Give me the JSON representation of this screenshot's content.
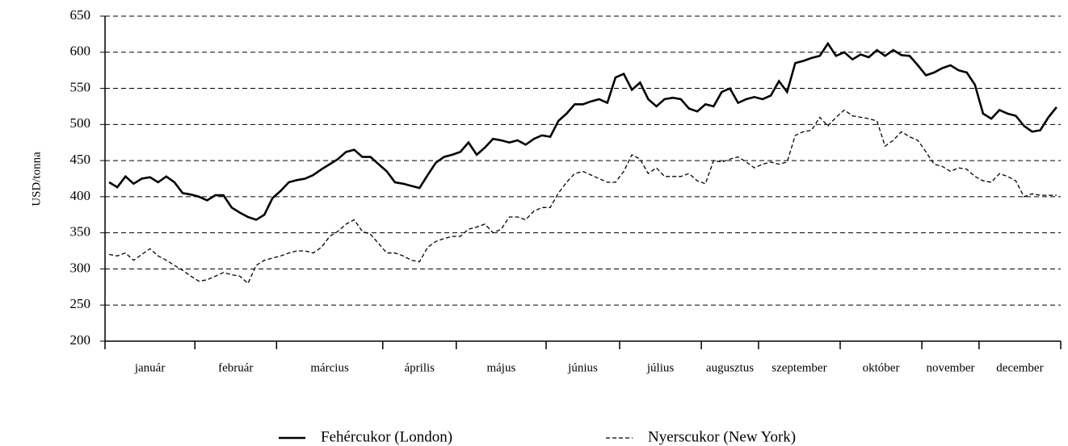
{
  "chart_data": {
    "type": "line",
    "ylabel": "USD/tonna",
    "categories": [
      "január",
      "február",
      "március",
      "április",
      "május",
      "június",
      "július",
      "augusztus",
      "szeptember",
      "október",
      "november",
      "december"
    ],
    "ylim": [
      200,
      650
    ],
    "yticks": [
      200,
      250,
      300,
      350,
      400,
      450,
      500,
      550,
      600,
      650
    ],
    "grid": true,
    "legend": "bottom",
    "series": [
      {
        "name": "Fehércukor (London)",
        "color": "#000000",
        "style": "solid",
        "values": [
          [
            420,
            413,
            428,
            418,
            425,
            427,
            420,
            428,
            420,
            405,
            403
          ],
          [
            400,
            395,
            402,
            402,
            385,
            378,
            372,
            368,
            375,
            398
          ],
          [
            408,
            420,
            423,
            425,
            430,
            438,
            445,
            452,
            462,
            465,
            455,
            455,
            445
          ],
          [
            435,
            420,
            418,
            415,
            412,
            430,
            447,
            455,
            458
          ],
          [
            462,
            475,
            458,
            468,
            480,
            478,
            475,
            478,
            472,
            480,
            485
          ],
          [
            483,
            505,
            515,
            528,
            528,
            532,
            535,
            530,
            565
          ],
          [
            570,
            548,
            558,
            535,
            525,
            535,
            537,
            535,
            522,
            518
          ],
          [
            528,
            525,
            545,
            550,
            530,
            535,
            538
          ],
          [
            535,
            540,
            560,
            545,
            585,
            588,
            592,
            595,
            612,
            595
          ],
          [
            600,
            590,
            597,
            593,
            603,
            595,
            603,
            596,
            595,
            582
          ],
          [
            568,
            572,
            578,
            582,
            575,
            572,
            555
          ],
          [
            515,
            508,
            520,
            515,
            512,
            498,
            490,
            492,
            510,
            524
          ]
        ]
      },
      {
        "name": "Nyerscukor (New York)",
        "color": "#000000",
        "style": "dashed",
        "values": [
          [
            320,
            318,
            322,
            312,
            320,
            328,
            318,
            312,
            305,
            298,
            290
          ],
          [
            283,
            285,
            290,
            295,
            292,
            290,
            280,
            305,
            312,
            315
          ],
          [
            318,
            322,
            325,
            325,
            322,
            330,
            345,
            352,
            362,
            368,
            352,
            348,
            335
          ],
          [
            322,
            322,
            318,
            312,
            310,
            330,
            338,
            342,
            345
          ],
          [
            345,
            355,
            358,
            362,
            350,
            355,
            372,
            372,
            368,
            380,
            385
          ],
          [
            385,
            405,
            420,
            432,
            435,
            430,
            425,
            420,
            420
          ],
          [
            435,
            458,
            452,
            432,
            440,
            428,
            428,
            428,
            432,
            422
          ],
          [
            418,
            450,
            448,
            452,
            455,
            448,
            440
          ],
          [
            445,
            448,
            445,
            448,
            485,
            490,
            492,
            510,
            498,
            510
          ],
          [
            520,
            512,
            510,
            508,
            505,
            470,
            478,
            490,
            483,
            478
          ],
          [
            462,
            445,
            442,
            435,
            440,
            438,
            428
          ],
          [
            422,
            420,
            432,
            428,
            422,
            400,
            404,
            402,
            402,
            402
          ]
        ]
      }
    ]
  }
}
